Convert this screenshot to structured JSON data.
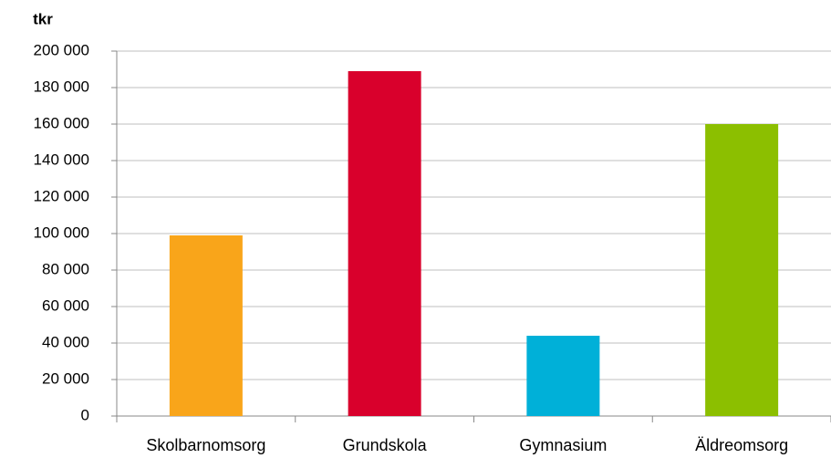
{
  "chart_data": {
    "type": "bar",
    "y_label": "tkr",
    "categories": [
      "Skolbarnomsorg",
      "Grundskola",
      "Gymnasium",
      "Äldreomsorg"
    ],
    "values": [
      99000,
      189000,
      44000,
      160000
    ],
    "colors": [
      "#f9a51a",
      "#d9002c",
      "#00b0d8",
      "#8cbf00"
    ],
    "ylim": [
      0,
      200000
    ],
    "yticks": [
      0,
      {
        "value": 20000,
        "label": "20 000"
      },
      {
        "value": 40000,
        "label": "40 000"
      },
      {
        "value": 60000,
        "label": "60 000"
      },
      {
        "value": 80000,
        "label": "80 000"
      },
      {
        "value": 100000,
        "label": "100 000"
      },
      {
        "value": 120000,
        "label": "120 000"
      },
      {
        "value": 140000,
        "label": "140 000"
      },
      {
        "value": 160000,
        "label": "160 000"
      },
      {
        "value": 180000,
        "label": "180 000"
      },
      {
        "value": 200000,
        "label": "200 000"
      }
    ],
    "grid": true
  }
}
